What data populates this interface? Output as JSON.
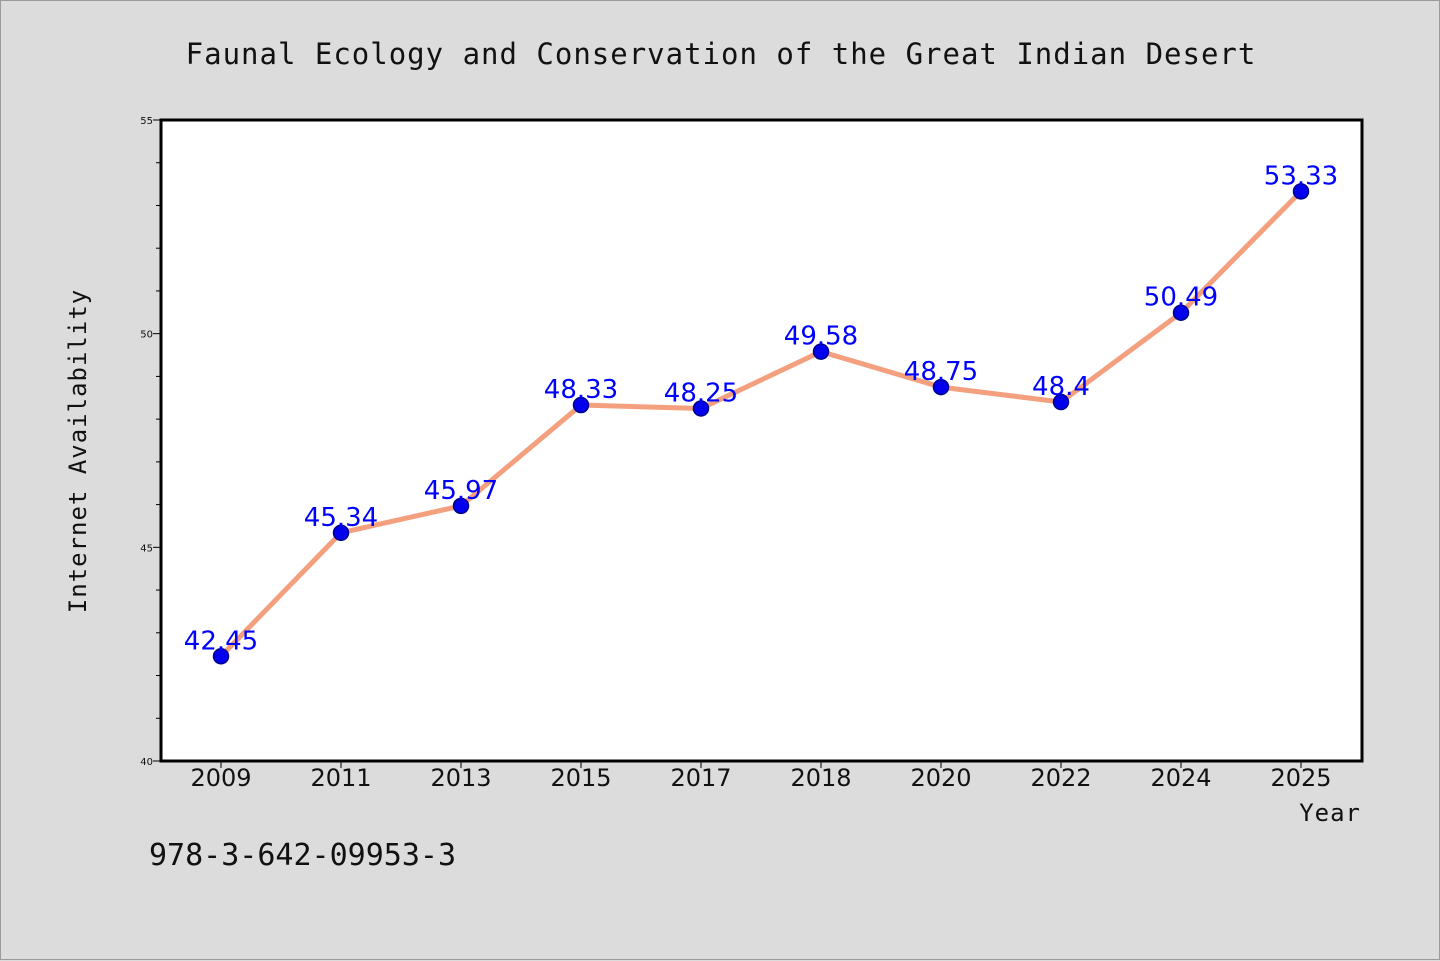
{
  "chart_data": {
    "type": "line",
    "title": "Faunal Ecology and Conservation of the Great Indian Desert",
    "xlabel": "Year",
    "ylabel": "Internet Availability",
    "categories": [
      "2009",
      "2011",
      "2013",
      "2015",
      "2017",
      "2018",
      "2020",
      "2022",
      "2024",
      "2025"
    ],
    "series": [
      {
        "values": [
          42.45,
          45.34,
          45.97,
          48.33,
          48.25,
          49.58,
          48.75,
          48.4,
          50.49,
          53.33
        ],
        "labels": [
          "42.45",
          "45.34",
          "45.97",
          "48.33",
          "48.25",
          "49.58",
          "48.75",
          "48.4",
          "50.49",
          "53.33"
        ]
      }
    ],
    "ylim": [
      40,
      55
    ],
    "yticks": [
      "40",
      "45",
      "50",
      "55"
    ],
    "grid": false,
    "colors": {
      "line": "#f4a07e",
      "marker": "#0000ee",
      "marker_edge": "#00008b",
      "data_label": "#0000ff",
      "background": "#dcdcdc",
      "plot_area": "#ffffff"
    }
  },
  "footer": {
    "isbn": "978-3-642-09953-3"
  }
}
